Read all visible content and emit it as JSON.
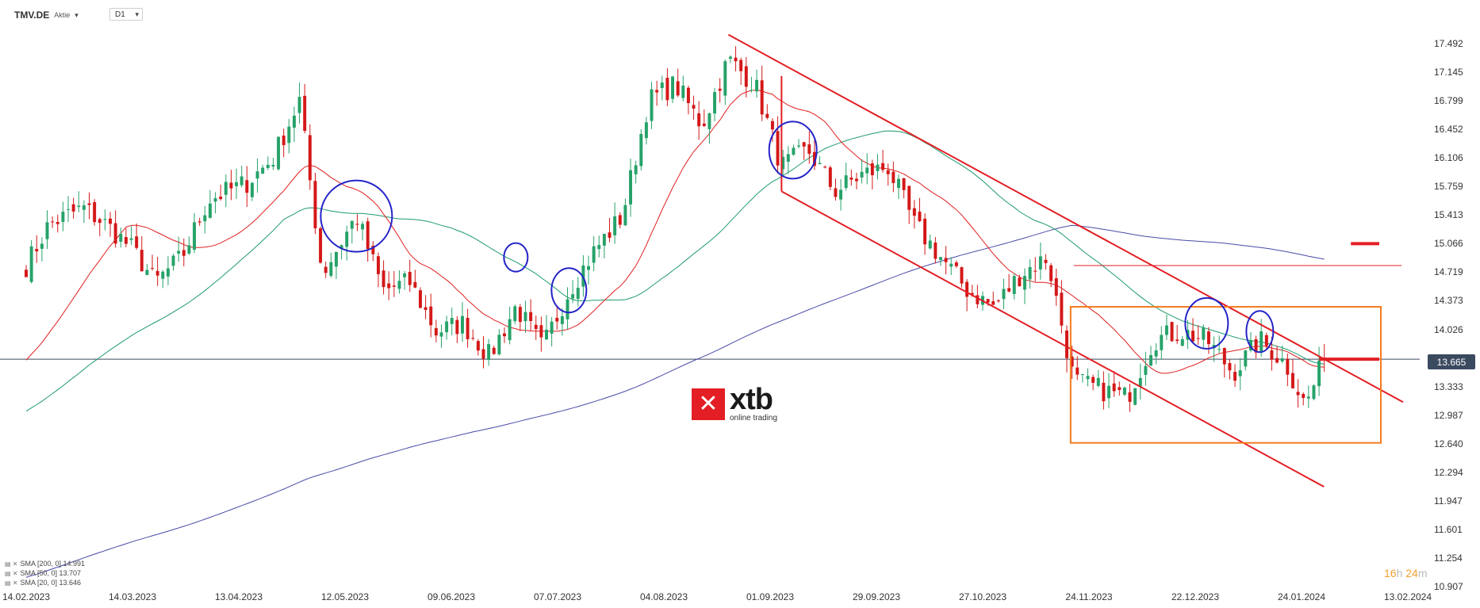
{
  "header": {
    "symbol": "TMV.DE",
    "symbol_type": "Aktie",
    "timeframe": "D1",
    "caret": "▾"
  },
  "price_axis": {
    "labels": [
      "17.492",
      "17.145",
      "16.799",
      "16.452",
      "16.106",
      "15.759",
      "15.413",
      "15.066",
      "14.719",
      "14.373",
      "14.026",
      "13.665",
      "13.333",
      "12.987",
      "12.640",
      "12.294",
      "11.947",
      "11.601",
      "11.254",
      "10.907"
    ]
  },
  "current_price": "13.665",
  "timer": {
    "hours": "16",
    "h": "h",
    "minutes": "24",
    "m": "m"
  },
  "legend": [
    {
      "icon": "▤ ✕",
      "text": "SMA [200, 0] 14.991"
    },
    {
      "icon": "▤ ✕",
      "text": "SMA [50, 0] 13.707"
    },
    {
      "icon": "▤ ✕",
      "text": "SMA [20, 0] 13.646"
    }
  ],
  "logo": {
    "brand": "xtb",
    "tagline": "online trading"
  },
  "colors": {
    "up": "#26a269",
    "down": "#d41818",
    "sma200": "#4a4aa8",
    "sma50": "#1e9a6e",
    "sma20": "#e02020",
    "channel": "#e31e24",
    "box": "#f47b20",
    "circle": "#2424c8",
    "hline": "#3a4a5f"
  },
  "chart_data": {
    "type": "candlestick",
    "symbol": "TMV.DE",
    "timeframe": "D1",
    "x_tick_labels": [
      "14.02.2023",
      "14.03.2023",
      "13.04.2023",
      "12.05.2023",
      "09.06.2023",
      "07.07.2023",
      "04.08.2023",
      "01.09.2023",
      "29.09.2023",
      "27.10.2023",
      "24.11.2023",
      "22.12.2023",
      "24.01.2024",
      "13.02.2024"
    ],
    "ylim": [
      10.907,
      17.492
    ],
    "y_ticks": [
      17.492,
      17.145,
      16.799,
      16.452,
      16.106,
      15.759,
      15.413,
      15.066,
      14.719,
      14.373,
      14.026,
      13.665,
      13.333,
      12.987,
      12.64,
      12.294,
      11.947,
      11.601,
      11.254,
      10.907
    ],
    "current_price": 13.665,
    "close_path": [
      {
        "date": "14.02.2023",
        "close": 14.8
      },
      {
        "date": "20.02.2023",
        "close": 15.3
      },
      {
        "date": "01.03.2023",
        "close": 15.5
      },
      {
        "date": "07.03.2023",
        "close": 15.3
      },
      {
        "date": "14.03.2023",
        "close": 15.0
      },
      {
        "date": "20.03.2023",
        "close": 14.6
      },
      {
        "date": "27.03.2023",
        "close": 14.9
      },
      {
        "date": "03.04.2023",
        "close": 15.6
      },
      {
        "date": "13.04.2023",
        "close": 15.8
      },
      {
        "date": "20.04.2023",
        "close": 16.1
      },
      {
        "date": "27.04.2023",
        "close": 16.8
      },
      {
        "date": "03.05.2023",
        "close": 14.7
      },
      {
        "date": "12.05.2023",
        "close": 15.4
      },
      {
        "date": "19.05.2023",
        "close": 14.5
      },
      {
        "date": "26.05.2023",
        "close": 14.6
      },
      {
        "date": "02.06.2023",
        "close": 14.0
      },
      {
        "date": "09.06.2023",
        "close": 14.1
      },
      {
        "date": "16.06.2023",
        "close": 13.7
      },
      {
        "date": "23.06.2023",
        "close": 14.3
      },
      {
        "date": "30.06.2023",
        "close": 13.8
      },
      {
        "date": "07.07.2023",
        "close": 14.5
      },
      {
        "date": "14.07.2023",
        "close": 15.0
      },
      {
        "date": "21.07.2023",
        "close": 15.4
      },
      {
        "date": "28.07.2023",
        "close": 16.8
      },
      {
        "date": "04.08.2023",
        "close": 17.0
      },
      {
        "date": "11.08.2023",
        "close": 16.5
      },
      {
        "date": "18.08.2023",
        "close": 17.3
      },
      {
        "date": "25.08.2023",
        "close": 17.0
      },
      {
        "date": "01.09.2023",
        "close": 16.0
      },
      {
        "date": "08.09.2023",
        "close": 16.2
      },
      {
        "date": "15.09.2023",
        "close": 15.7
      },
      {
        "date": "22.09.2023",
        "close": 15.9
      },
      {
        "date": "29.09.2023",
        "close": 16.0
      },
      {
        "date": "06.10.2023",
        "close": 15.3
      },
      {
        "date": "13.10.2023",
        "close": 14.9
      },
      {
        "date": "20.10.2023",
        "close": 14.5
      },
      {
        "date": "27.10.2023",
        "close": 14.3
      },
      {
        "date": "03.11.2023",
        "close": 14.7
      },
      {
        "date": "10.11.2023",
        "close": 14.9
      },
      {
        "date": "17.11.2023",
        "close": 13.4
      },
      {
        "date": "24.11.2023",
        "close": 13.3
      },
      {
        "date": "01.12.2023",
        "close": 13.2
      },
      {
        "date": "08.12.2023",
        "close": 13.9
      },
      {
        "date": "15.12.2023",
        "close": 14.0
      },
      {
        "date": "22.12.2023",
        "close": 13.9
      },
      {
        "date": "29.12.2023",
        "close": 13.5
      },
      {
        "date": "05.01.2024",
        "close": 13.9
      },
      {
        "date": "12.01.2024",
        "close": 13.6
      },
      {
        "date": "17.01.2024",
        "close": 13.1
      },
      {
        "date": "22.01.2024",
        "close": 13.665
      }
    ],
    "series": [
      {
        "name": "SMA [200, 0]",
        "last": 14.991
      },
      {
        "name": "SMA [50, 0]",
        "last": 13.707
      },
      {
        "name": "SMA [20, 0]",
        "last": 13.646
      }
    ]
  }
}
